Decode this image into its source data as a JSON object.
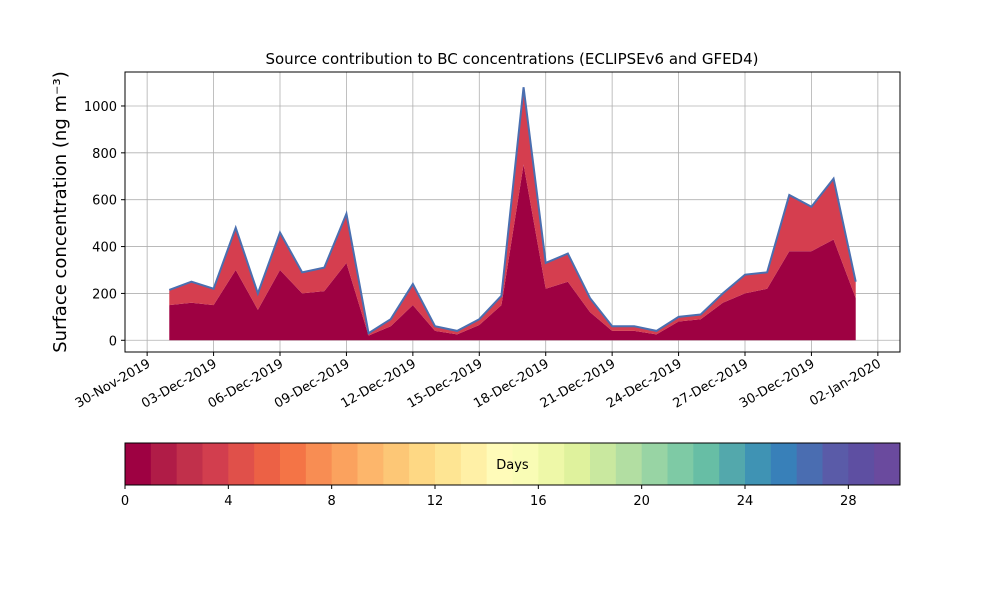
{
  "chart_data": {
    "type": "stacked-area",
    "title": "Source contribution to BC concentrations (ECLIPSEv6 and GFED4)",
    "y_label": "Surface concentration (ng m⁻³)",
    "x": [
      "2019-12-01",
      "2019-12-02",
      "2019-12-03",
      "2019-12-04",
      "2019-12-05",
      "2019-12-06",
      "2019-12-07",
      "2019-12-08",
      "2019-12-09",
      "2019-12-10",
      "2019-12-11",
      "2019-12-12",
      "2019-12-13",
      "2019-12-14",
      "2019-12-15",
      "2019-12-16",
      "2019-12-17",
      "2019-12-18",
      "2019-12-19",
      "2019-12-20",
      "2019-12-21",
      "2019-12-22",
      "2019-12-23",
      "2019-12-24",
      "2019-12-25",
      "2019-12-26",
      "2019-12-27",
      "2019-12-28",
      "2019-12-29",
      "2019-12-30",
      "2019-12-31",
      "2020-01-01"
    ],
    "series": [
      {
        "color": "#9e0142",
        "values": [
          150,
          160,
          150,
          300,
          130,
          300,
          200,
          210,
          330,
          20,
          60,
          150,
          40,
          25,
          65,
          150,
          750,
          220,
          250,
          120,
          40,
          40,
          25,
          80,
          90,
          160,
          200,
          220,
          380,
          380,
          430,
          180
        ]
      },
      {
        "color": "#d53e4f",
        "values": [
          65,
          90,
          70,
          180,
          70,
          160,
          90,
          100,
          210,
          10,
          30,
          90,
          20,
          15,
          25,
          40,
          330,
          110,
          120,
          60,
          20,
          20,
          15,
          20,
          20,
          40,
          80,
          70,
          240,
          190,
          260,
          70
        ]
      }
    ],
    "line_color": "#4a6fb0",
    "xlim": [
      "2019-11-29",
      "2020-01-03"
    ],
    "xticks": [
      {
        "value": "2019-11-30",
        "label": "30-Nov-2019"
      },
      {
        "value": "2019-12-03",
        "label": "03-Dec-2019"
      },
      {
        "value": "2019-12-06",
        "label": "06-Dec-2019"
      },
      {
        "value": "2019-12-09",
        "label": "09-Dec-2019"
      },
      {
        "value": "2019-12-12",
        "label": "12-Dec-2019"
      },
      {
        "value": "2019-12-15",
        "label": "15-Dec-2019"
      },
      {
        "value": "2019-12-18",
        "label": "18-Dec-2019"
      },
      {
        "value": "2019-12-21",
        "label": "21-Dec-2019"
      },
      {
        "value": "2019-12-24",
        "label": "24-Dec-2019"
      },
      {
        "value": "2019-12-27",
        "label": "27-Dec-2019"
      },
      {
        "value": "2019-12-30",
        "label": "30-Dec-2019"
      },
      {
        "value": "2020-01-02",
        "label": "02-Jan-2020"
      }
    ],
    "ylim": [
      -50,
      1145
    ],
    "yticks": [
      0,
      200,
      400,
      600,
      800,
      1000
    ],
    "grid": true,
    "colorbar": {
      "label": "Days",
      "lim": [
        0,
        30
      ],
      "ticks": [
        0,
        4,
        8,
        12,
        16,
        20,
        24,
        28
      ],
      "colors": [
        "#9e0142",
        "#b01c47",
        "#c1304b",
        "#d23e4e",
        "#e0504a",
        "#ec6145",
        "#f47446",
        "#f88d53",
        "#fba25e",
        "#fdb66b",
        "#fdc776",
        "#fed884",
        "#fee593",
        "#fff0a6",
        "#fffbb9",
        "#f9fcb5",
        "#eef8a8",
        "#dff29d",
        "#c9e89f",
        "#b2dea2",
        "#98d4a4",
        "#7ecaa5",
        "#67bea5",
        "#53a8ac",
        "#3f93b4",
        "#3880b9",
        "#4a6db1",
        "#5a5ba8",
        "#5e4fa2",
        "#6a4a9e"
      ]
    }
  }
}
